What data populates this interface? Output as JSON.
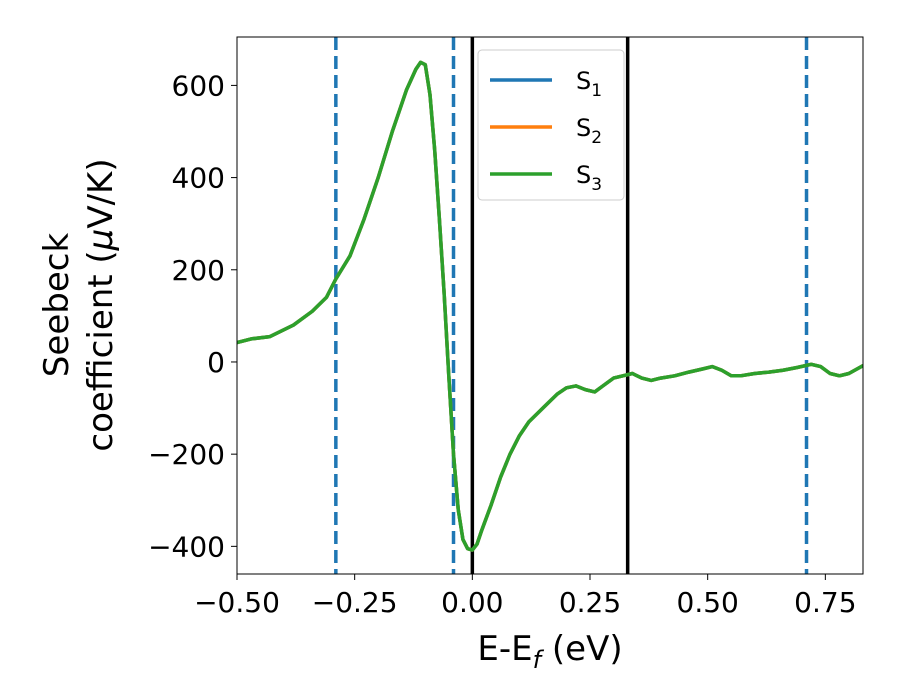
{
  "chart_data": {
    "type": "line",
    "xlabel": "E-E",
    "xlabel_sub": "f",
    "xlabel_unit": " (eV)",
    "ylabel_line1": "Seebeck",
    "ylabel_line2_a": "coefficient  (",
    "ylabel_line2_mu": "μ",
    "ylabel_line2_b": "V/K)",
    "xlim": [
      -0.5,
      0.83
    ],
    "ylim": [
      -460,
      705
    ],
    "xticks": [
      -0.5,
      -0.25,
      0.0,
      0.25,
      0.5,
      0.75
    ],
    "xtick_labels": [
      "−0.50",
      "−0.25",
      "0.00",
      "0.25",
      "0.50",
      "0.75"
    ],
    "yticks": [
      -400,
      -200,
      0,
      200,
      400,
      600
    ],
    "ytick_labels": [
      "−400",
      "−200",
      "0",
      "200",
      "400",
      "600"
    ],
    "grid": false,
    "legend_position": "top-center",
    "legend": [
      {
        "name": "S",
        "sub": "1",
        "color": "#1f77b4"
      },
      {
        "name": "S",
        "sub": "2",
        "color": "#ff7f0e"
      },
      {
        "name": "S",
        "sub": "3",
        "color": "#2ca02c"
      }
    ],
    "vlines": [
      {
        "x": -0.29,
        "style": "dashed",
        "color": "#1f77b4"
      },
      {
        "x": -0.04,
        "style": "dashed",
        "color": "#1f77b4"
      },
      {
        "x": 0.0,
        "style": "solid",
        "color": "#000000"
      },
      {
        "x": 0.33,
        "style": "solid",
        "color": "#000000"
      },
      {
        "x": 0.71,
        "style": "dashed",
        "color": "#1f77b4"
      }
    ],
    "series": [
      {
        "name": "S1",
        "color": "#1f77b4",
        "x": [
          -0.5,
          -0.47,
          -0.43,
          -0.38,
          -0.34,
          -0.31,
          -0.29,
          -0.26,
          -0.23,
          -0.2,
          -0.17,
          -0.14,
          -0.12,
          -0.11,
          -0.1,
          -0.09,
          -0.08,
          -0.07,
          -0.06,
          -0.05,
          -0.04,
          -0.03,
          -0.02,
          -0.01,
          0.0,
          0.01,
          0.02,
          0.04,
          0.06,
          0.08,
          0.1,
          0.12,
          0.15,
          0.18,
          0.2,
          0.22,
          0.24,
          0.26,
          0.28,
          0.3,
          0.32,
          0.34,
          0.36,
          0.38,
          0.4,
          0.43,
          0.46,
          0.49,
          0.51,
          0.53,
          0.55,
          0.57,
          0.6,
          0.63,
          0.66,
          0.69,
          0.72,
          0.74,
          0.76,
          0.78,
          0.8,
          0.83
        ],
        "y": [
          42,
          50,
          55,
          80,
          110,
          140,
          180,
          230,
          310,
          400,
          500,
          590,
          635,
          650,
          645,
          580,
          460,
          310,
          150,
          -30,
          -200,
          -320,
          -385,
          -405,
          -408,
          -395,
          -365,
          -310,
          -250,
          -200,
          -160,
          -130,
          -100,
          -70,
          -56,
          -52,
          -60,
          -65,
          -50,
          -35,
          -30,
          -25,
          -35,
          -40,
          -35,
          -30,
          -22,
          -15,
          -10,
          -18,
          -30,
          -30,
          -25,
          -22,
          -18,
          -12,
          -5,
          -10,
          -25,
          -30,
          -25,
          -8
        ]
      },
      {
        "name": "S2",
        "color": "#ff7f0e",
        "x": [
          -0.5,
          -0.47,
          -0.43,
          -0.38,
          -0.34,
          -0.31,
          -0.29,
          -0.26,
          -0.23,
          -0.2,
          -0.17,
          -0.14,
          -0.12,
          -0.11,
          -0.1,
          -0.09,
          -0.08,
          -0.07,
          -0.06,
          -0.05,
          -0.04,
          -0.03,
          -0.02,
          -0.01,
          0.0,
          0.01,
          0.02,
          0.04,
          0.06,
          0.08,
          0.1,
          0.12,
          0.15,
          0.18,
          0.2,
          0.22,
          0.24,
          0.26,
          0.28,
          0.3,
          0.32,
          0.34,
          0.36,
          0.38,
          0.4,
          0.43,
          0.46,
          0.49,
          0.51,
          0.53,
          0.55,
          0.57,
          0.6,
          0.63,
          0.66,
          0.69,
          0.72,
          0.74,
          0.76,
          0.78,
          0.8,
          0.83
        ],
        "y": [
          42,
          50,
          55,
          80,
          110,
          140,
          180,
          230,
          310,
          400,
          500,
          590,
          635,
          650,
          645,
          580,
          460,
          310,
          150,
          -30,
          -200,
          -320,
          -385,
          -405,
          -408,
          -395,
          -365,
          -310,
          -250,
          -200,
          -160,
          -130,
          -100,
          -70,
          -56,
          -52,
          -60,
          -65,
          -50,
          -35,
          -30,
          -25,
          -35,
          -40,
          -35,
          -30,
          -22,
          -15,
          -10,
          -18,
          -30,
          -30,
          -25,
          -22,
          -18,
          -12,
          -5,
          -10,
          -25,
          -30,
          -25,
          -8
        ]
      },
      {
        "name": "S3",
        "color": "#2ca02c",
        "x": [
          -0.5,
          -0.47,
          -0.43,
          -0.38,
          -0.34,
          -0.31,
          -0.29,
          -0.26,
          -0.23,
          -0.2,
          -0.17,
          -0.14,
          -0.12,
          -0.11,
          -0.1,
          -0.09,
          -0.08,
          -0.07,
          -0.06,
          -0.05,
          -0.04,
          -0.03,
          -0.02,
          -0.01,
          0.0,
          0.01,
          0.02,
          0.04,
          0.06,
          0.08,
          0.1,
          0.12,
          0.15,
          0.18,
          0.2,
          0.22,
          0.24,
          0.26,
          0.28,
          0.3,
          0.32,
          0.34,
          0.36,
          0.38,
          0.4,
          0.43,
          0.46,
          0.49,
          0.51,
          0.53,
          0.55,
          0.57,
          0.6,
          0.63,
          0.66,
          0.69,
          0.72,
          0.74,
          0.76,
          0.78,
          0.8,
          0.83
        ],
        "y": [
          42,
          50,
          55,
          80,
          110,
          140,
          180,
          230,
          310,
          400,
          500,
          590,
          635,
          650,
          645,
          580,
          460,
          310,
          150,
          -30,
          -200,
          -320,
          -385,
          -405,
          -408,
          -395,
          -365,
          -310,
          -250,
          -200,
          -160,
          -130,
          -100,
          -70,
          -56,
          -52,
          -60,
          -65,
          -50,
          -35,
          -30,
          -25,
          -35,
          -40,
          -35,
          -30,
          -22,
          -15,
          -10,
          -18,
          -30,
          -30,
          -25,
          -22,
          -18,
          -12,
          -5,
          -10,
          -25,
          -30,
          -25,
          -8
        ]
      }
    ]
  }
}
